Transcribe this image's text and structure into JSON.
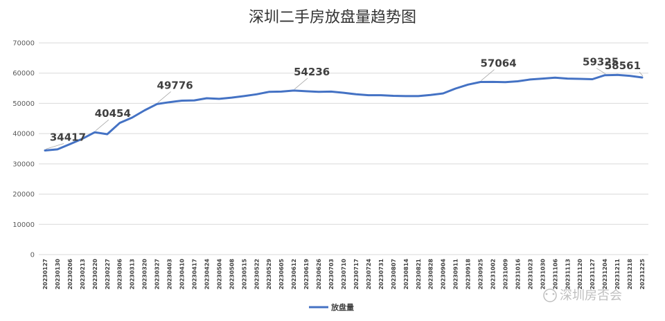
{
  "chart_data": {
    "type": "line",
    "title": "深圳二手房放盘量趋势图",
    "ylim": [
      0,
      70000
    ],
    "yticks": [
      0,
      10000,
      20000,
      30000,
      40000,
      50000,
      60000,
      70000
    ],
    "grid": true,
    "legend_position": "bottom",
    "x": [
      "20230127",
      "20230130",
      "20230206",
      "20230213",
      "20230220",
      "20230227",
      "20230306",
      "20230313",
      "20230320",
      "20230327",
      "20230403",
      "20230410",
      "20230417",
      "20230424",
      "20230504",
      "20230508",
      "20230515",
      "20230522",
      "20230529",
      "20230605",
      "20230612",
      "20230619",
      "20230626",
      "20230703",
      "20230710",
      "20230717",
      "20230724",
      "20230731",
      "20230807",
      "20230814",
      "20230821",
      "20230828",
      "20230904",
      "20230911",
      "20230918",
      "20230925",
      "20231002",
      "20231009",
      "20231016",
      "20231023",
      "20231030",
      "20231106",
      "20231113",
      "20231120",
      "20231127",
      "20231204",
      "20231211",
      "20231218",
      "20231225"
    ],
    "series": [
      {
        "name": "放盘量",
        "color": "#4472c4",
        "values": [
          34417,
          34800,
          36500,
          38300,
          40454,
          39800,
          43500,
          45300,
          47700,
          49776,
          50400,
          50900,
          51000,
          51700,
          51500,
          51900,
          52400,
          53000,
          53800,
          53900,
          54236,
          54000,
          53800,
          53900,
          53500,
          53000,
          52700,
          52700,
          52500,
          52400,
          52400,
          52800,
          53300,
          54900,
          56200,
          57064,
          57100,
          57000,
          57300,
          57900,
          58200,
          58500,
          58200,
          58100,
          58000,
          59325,
          59400,
          59100,
          58561
        ]
      }
    ],
    "annotations": [
      {
        "index": 0,
        "text": "34417"
      },
      {
        "index": 4,
        "text": "40454"
      },
      {
        "index": 9,
        "text": "49776"
      },
      {
        "index": 20,
        "text": "54236"
      },
      {
        "index": 35,
        "text": "57064"
      },
      {
        "index": 45,
        "text": "59325"
      },
      {
        "index": 48,
        "text": "58561"
      }
    ]
  },
  "watermark": {
    "text": "深圳房否会"
  }
}
